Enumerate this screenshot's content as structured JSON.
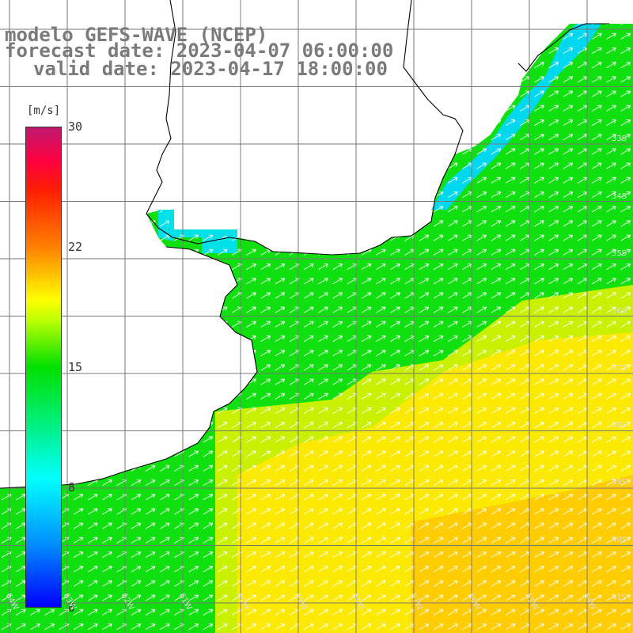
{
  "title": {
    "line1": "modelo GEFS-WAVE (NCEP)",
    "line2": "forecast date: 2023-04-07 06:00:00",
    "line3": "valid date: 2023-04-17 18:00:00"
  },
  "colorbar": {
    "unit": "[m/s]",
    "ticks": [
      "30",
      "22",
      "15",
      "8",
      "0"
    ],
    "min": 0,
    "max": 30
  },
  "lat_labels": [
    "33S",
    "34S",
    "35S",
    "36S",
    "37S",
    "38S",
    "39S",
    "40S",
    "41S"
  ],
  "lon_labels": [
    "64W",
    "63W",
    "62W",
    "61W",
    "60W",
    "59W",
    "58W",
    "57W",
    "56W",
    "55W",
    "54W"
  ],
  "colors": {
    "grid": "#777777",
    "coast": "#000000",
    "title": "#7a7a7a"
  }
}
